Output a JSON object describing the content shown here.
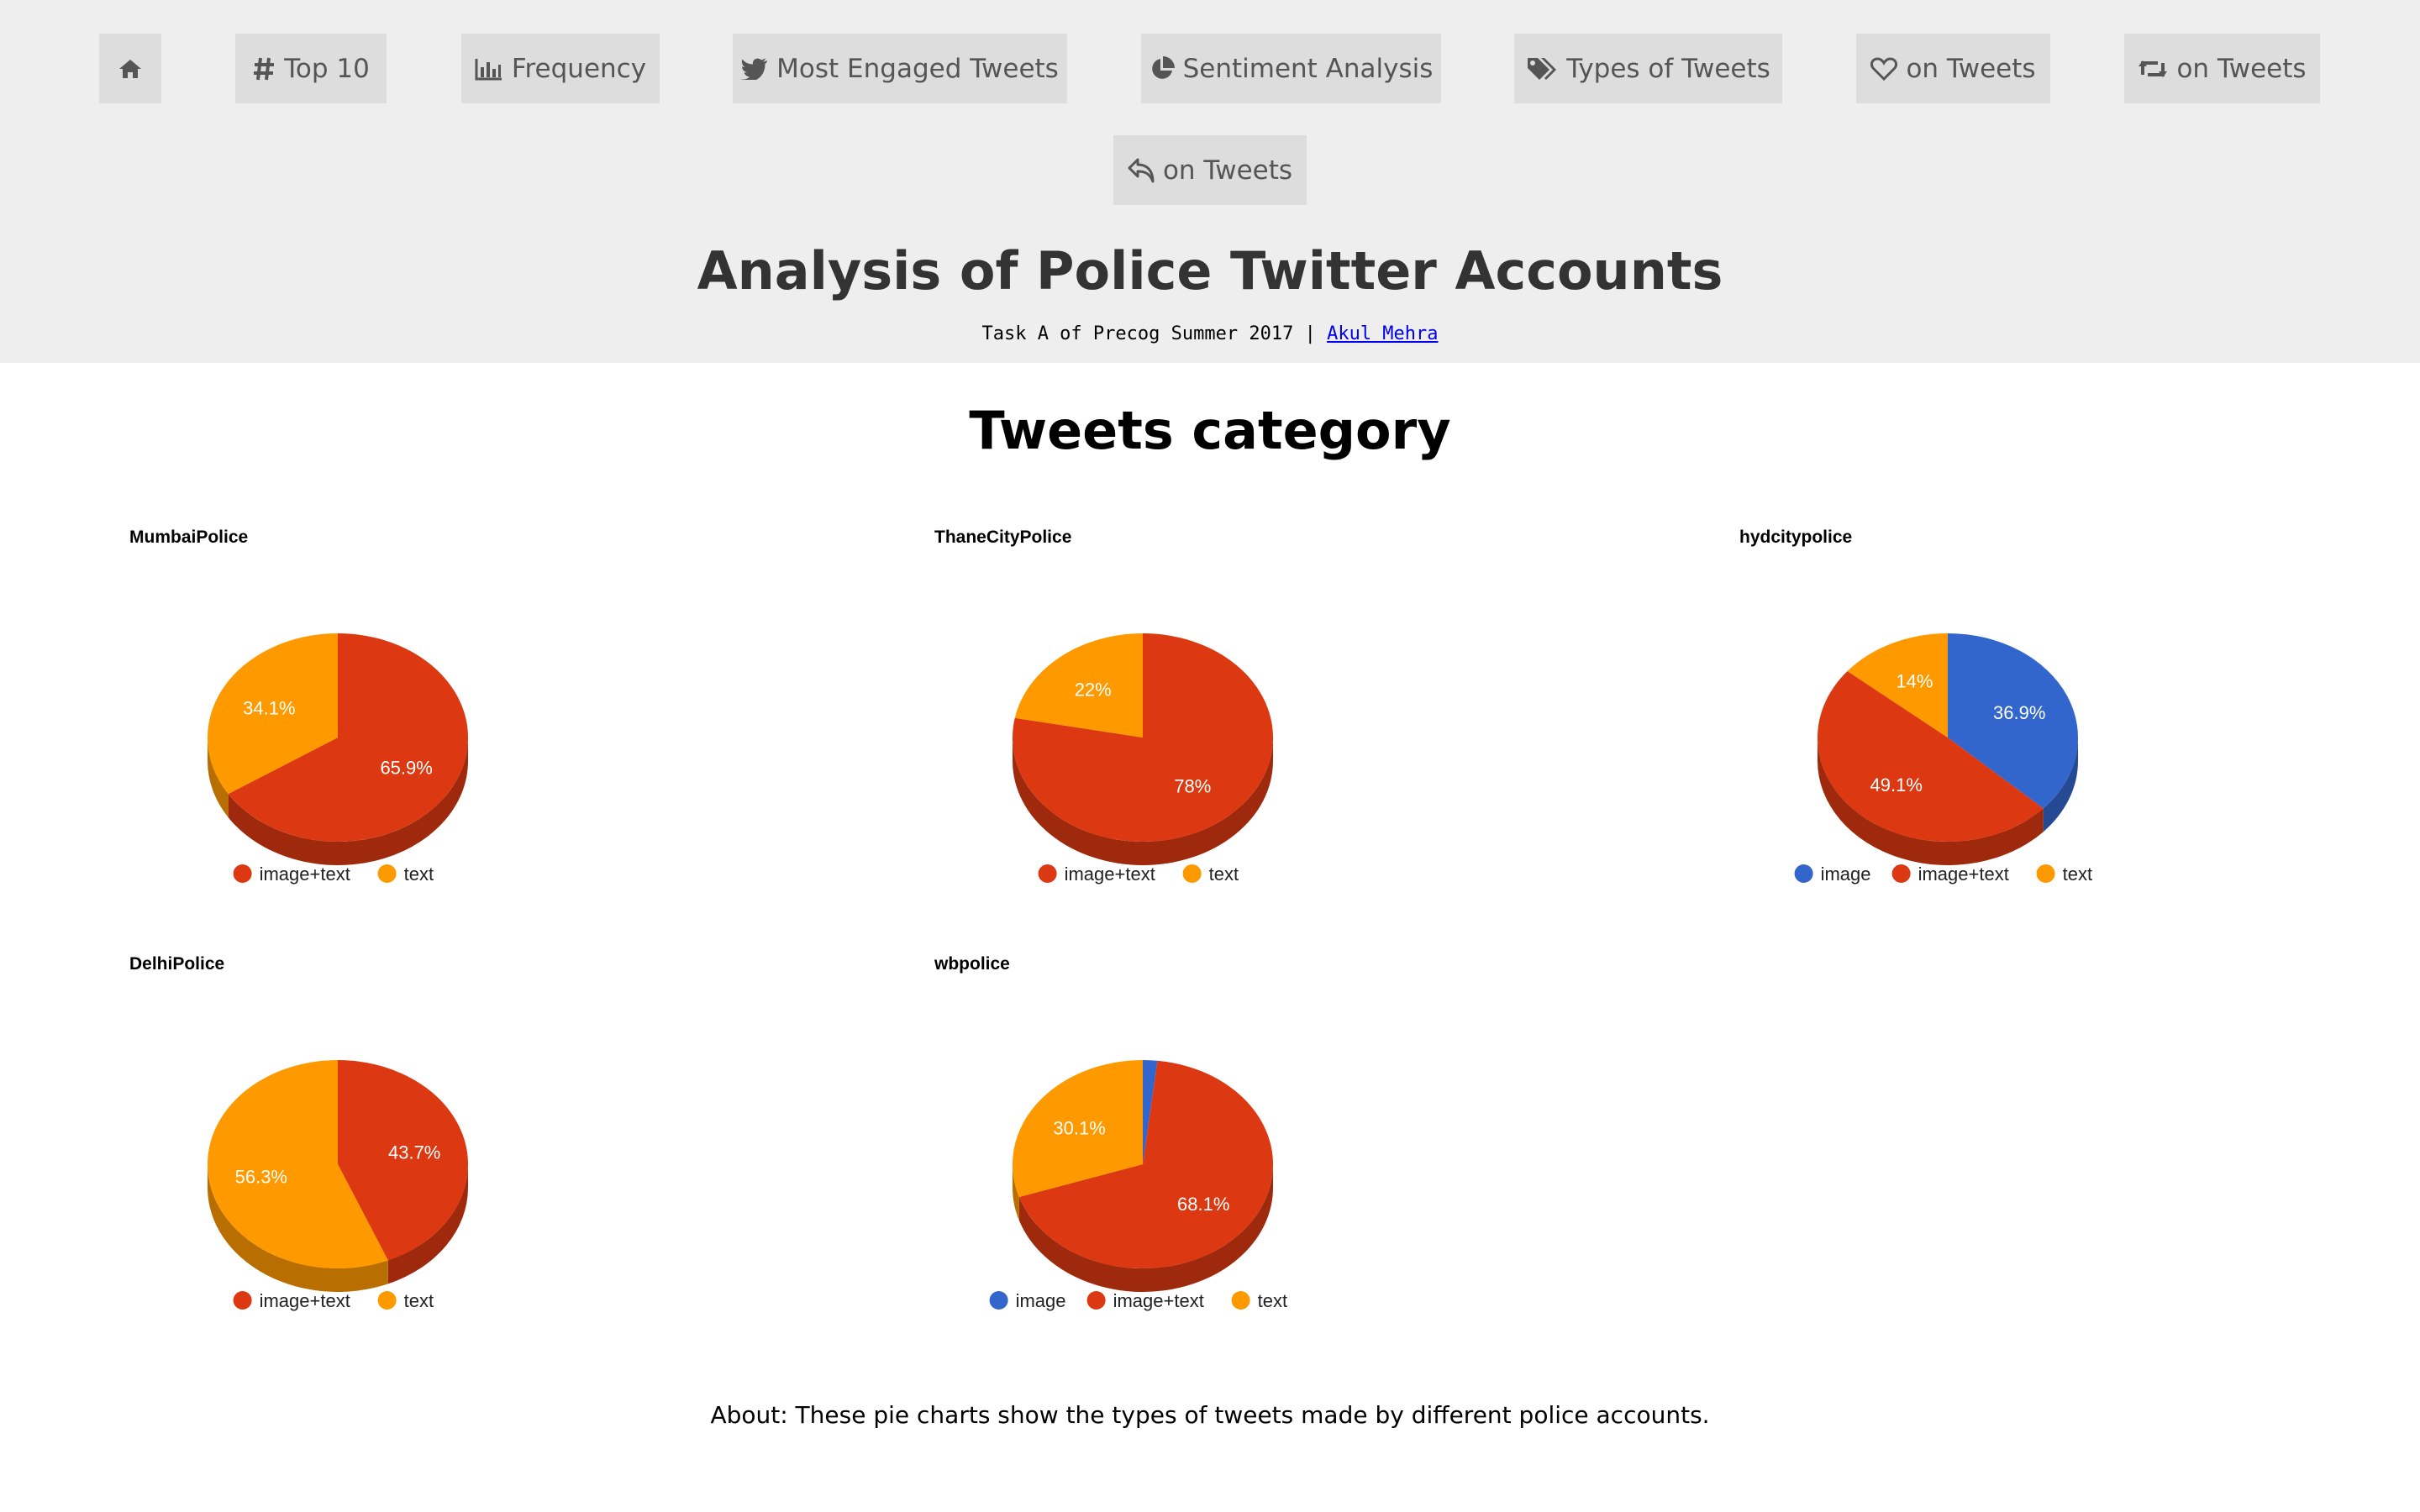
{
  "nav": {
    "items": [
      {
        "icon": "home-icon",
        "label": ""
      },
      {
        "icon": "hashtag-icon",
        "label": "Top 10"
      },
      {
        "icon": "bar-chart-icon",
        "label": "Frequency"
      },
      {
        "icon": "twitter-bird-icon",
        "label": "Most Engaged Tweets"
      },
      {
        "icon": "pie-chart-icon",
        "label": "Sentiment Analysis"
      },
      {
        "icon": "tags-icon",
        "label": "Types of Tweets"
      },
      {
        "icon": "heart-icon",
        "label": "on Tweets"
      },
      {
        "icon": "retweet-icon",
        "label": "on Tweets"
      },
      {
        "icon": "reply-icon",
        "label": "on Tweets"
      }
    ]
  },
  "header": {
    "title": "Analysis of Police Twitter Accounts",
    "subtitle_prefix": "Task A of Precog Summer 2017 | ",
    "author_link": "Akul Mehra"
  },
  "section": {
    "title": "Tweets category",
    "about": "About: These pie charts show the types of tweets made by different police accounts."
  },
  "colors": {
    "image": "#3366cc",
    "image+text": "#dc3912",
    "text": "#ff9900",
    "header_bg": "#eeeeee",
    "nav_bg": "#dddddd"
  },
  "chart_data": [
    {
      "type": "pie",
      "title": "MumbaiPolice",
      "labels": [
        "image+text",
        "text"
      ],
      "values": [
        65.9,
        34.1
      ],
      "data_labels": [
        "65.9%",
        "34.1%"
      ],
      "legend": "bottom",
      "style": "3d"
    },
    {
      "type": "pie",
      "title": "ThaneCityPolice",
      "labels": [
        "image+text",
        "text"
      ],
      "values": [
        78,
        22
      ],
      "data_labels": [
        "78%",
        "22%"
      ],
      "legend": "bottom",
      "style": "3d"
    },
    {
      "type": "pie",
      "title": "hydcitypolice",
      "labels": [
        "image",
        "image+text",
        "text"
      ],
      "values": [
        36.9,
        49.1,
        14
      ],
      "data_labels": [
        "36.9%",
        "49.1%",
        "14%"
      ],
      "legend": "bottom",
      "style": "3d"
    },
    {
      "type": "pie",
      "title": "DelhiPolice",
      "labels": [
        "image+text",
        "text"
      ],
      "values": [
        43.7,
        56.3
      ],
      "data_labels": [
        "43.7%",
        "56.3%"
      ],
      "legend": "bottom",
      "style": "3d"
    },
    {
      "type": "pie",
      "title": "wbpolice",
      "labels": [
        "image",
        "image+text",
        "text"
      ],
      "values": [
        1.8,
        68.1,
        30.1
      ],
      "data_labels": [
        "",
        "68.1%",
        "30.1%"
      ],
      "legend": "bottom",
      "style": "3d"
    }
  ]
}
